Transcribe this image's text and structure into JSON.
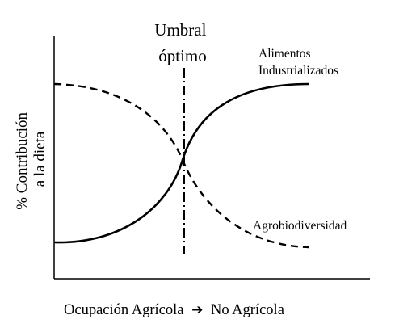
{
  "threshold_label": [
    "Umbral",
    "óptimo"
  ],
  "y_axis_label": [
    "% Contribución",
    "a la dieta"
  ],
  "x_axis_label": {
    "from": "Ocupación Agrícola",
    "arrow": "➔",
    "to": "No Agrícola"
  },
  "curves": {
    "industrial": {
      "label": [
        "Alimentos",
        "Industrializados"
      ],
      "style": "solid",
      "trend": "increasing"
    },
    "agrobiodiversity": {
      "label": "Agrobiodiversidad",
      "style": "dashed",
      "trend": "decreasing"
    }
  },
  "threshold_line_style": "dash-dot",
  "colors": {
    "ink": "#000000",
    "background": "#ffffff"
  }
}
